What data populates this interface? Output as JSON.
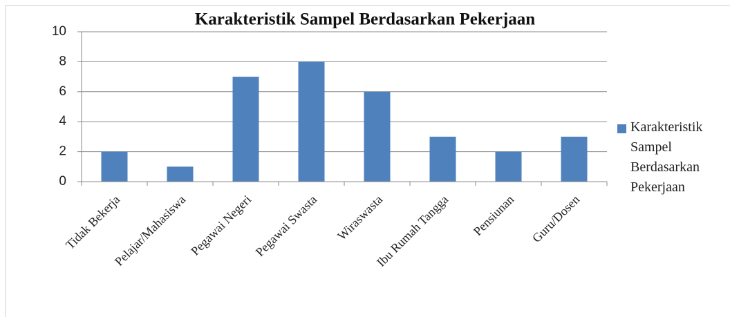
{
  "chart_data": {
    "type": "bar",
    "title": "Karakteristik Sampel Berdasarkan Pekerjaan",
    "categories": [
      "Tidak Bekerja",
      "Pelajar/Mahasiswa",
      "Pegawai Negeri",
      "Pegawai Swasta",
      "Wiraswasta",
      "Ibu Rumah Tangga",
      "Pensiunan",
      "Guru/Dosen"
    ],
    "series": [
      {
        "name": "Karakteristik Sampel Berdasarkan Pekerjaan",
        "color": "#4f81bd",
        "values": [
          2,
          1,
          7,
          8,
          6,
          3,
          2,
          3
        ]
      }
    ],
    "ylim": [
      0,
      10
    ],
    "yticks": [
      0,
      2,
      4,
      6,
      8,
      10
    ],
    "grid": true,
    "legend": "right"
  }
}
